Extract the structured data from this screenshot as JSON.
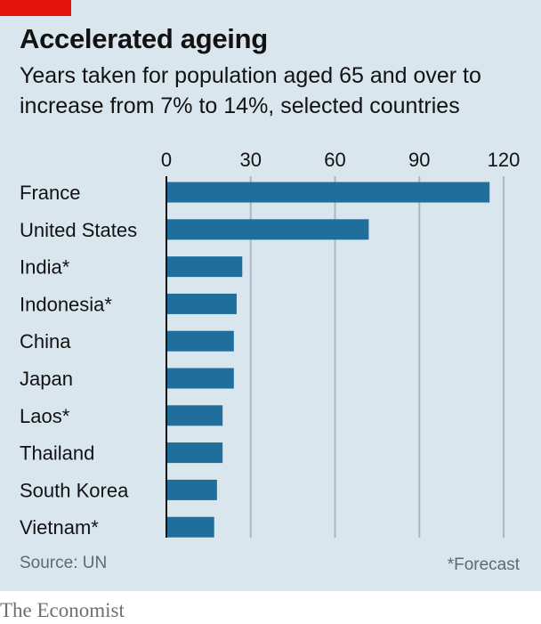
{
  "header": {
    "title": "Accelerated ageing",
    "subtitle": "Years taken for population aged 65 and over to increase from 7% to 14%, selected countries"
  },
  "footer": {
    "source": "Source: UN",
    "footnote": "*Forecast",
    "brand": "The Economist"
  },
  "colors": {
    "bar": "#1f6e9c",
    "background": "#d9e6ee",
    "accent": "#e3120b"
  },
  "chart_data": {
    "type": "bar",
    "orientation": "horizontal",
    "categories": [
      "France",
      "United States",
      "India*",
      "Indonesia*",
      "China",
      "Japan",
      "Laos*",
      "Thailand",
      "South Korea",
      "Vietnam*"
    ],
    "values": [
      115,
      72,
      27,
      25,
      24,
      24,
      20,
      20,
      18,
      17
    ],
    "xlim": [
      0,
      120
    ],
    "xticks": [
      0,
      30,
      60,
      90,
      120
    ],
    "tick_position": "top",
    "grid": true
  }
}
